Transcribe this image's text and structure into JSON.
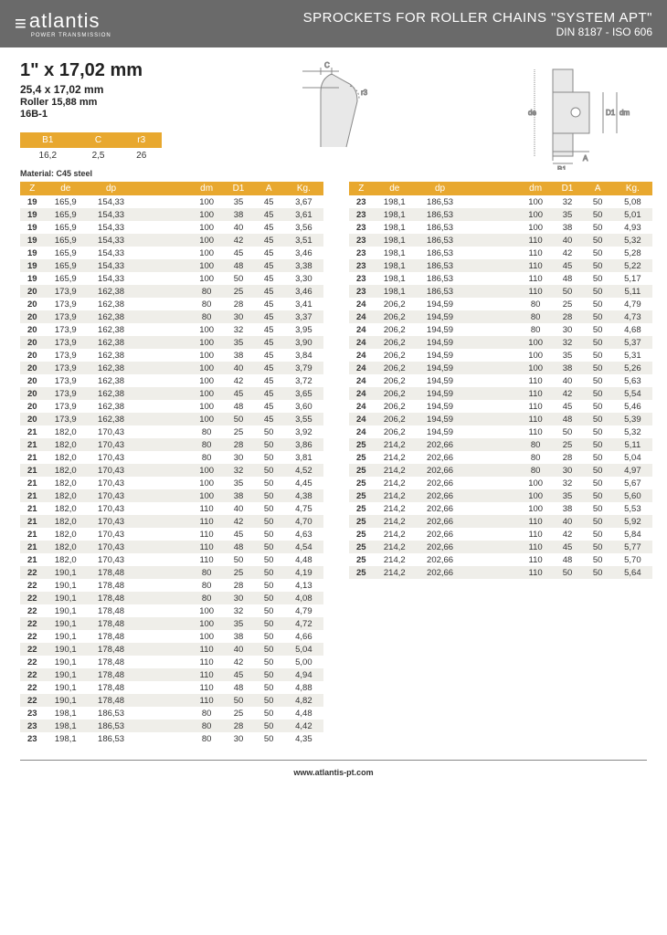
{
  "header": {
    "brand": "atlantis",
    "brand_sub": "POWER TRANSMISSION",
    "title_line1": "SPROCKETS FOR ROLLER CHAINS \"SYSTEM APT\"",
    "title_line2": "DIN 8187 - ISO 606"
  },
  "spec": {
    "line1": "1\" x 17,02 mm",
    "line2": "25,4 x 17,02 mm",
    "line3": "Roller 15,88 mm",
    "line4": "16B-1"
  },
  "mini_headers": [
    "B1",
    "C",
    "r3"
  ],
  "mini_values": [
    "16,2",
    "2,5",
    "26"
  ],
  "material": "Material: C45 steel",
  "columns": [
    "Z",
    "de",
    "dp",
    "",
    "dm",
    "D1",
    "A",
    "Kg."
  ],
  "colors": {
    "header_bg": "#6a6a6a",
    "accent": "#e8a82f",
    "row_alt": "#efeee9"
  },
  "left_rows": [
    [
      "19",
      "165,9",
      "154,33",
      "",
      "100",
      "35",
      "45",
      "3,67"
    ],
    [
      "19",
      "165,9",
      "154,33",
      "",
      "100",
      "38",
      "45",
      "3,61"
    ],
    [
      "19",
      "165,9",
      "154,33",
      "",
      "100",
      "40",
      "45",
      "3,56"
    ],
    [
      "19",
      "165,9",
      "154,33",
      "",
      "100",
      "42",
      "45",
      "3,51"
    ],
    [
      "19",
      "165,9",
      "154,33",
      "",
      "100",
      "45",
      "45",
      "3,46"
    ],
    [
      "19",
      "165,9",
      "154,33",
      "",
      "100",
      "48",
      "45",
      "3,38"
    ],
    [
      "19",
      "165,9",
      "154,33",
      "",
      "100",
      "50",
      "45",
      "3,30"
    ],
    [
      "20",
      "173,9",
      "162,38",
      "",
      "80",
      "25",
      "45",
      "3,46"
    ],
    [
      "20",
      "173,9",
      "162,38",
      "",
      "80",
      "28",
      "45",
      "3,41"
    ],
    [
      "20",
      "173,9",
      "162,38",
      "",
      "80",
      "30",
      "45",
      "3,37"
    ],
    [
      "20",
      "173,9",
      "162,38",
      "",
      "100",
      "32",
      "45",
      "3,95"
    ],
    [
      "20",
      "173,9",
      "162,38",
      "",
      "100",
      "35",
      "45",
      "3,90"
    ],
    [
      "20",
      "173,9",
      "162,38",
      "",
      "100",
      "38",
      "45",
      "3,84"
    ],
    [
      "20",
      "173,9",
      "162,38",
      "",
      "100",
      "40",
      "45",
      "3,79"
    ],
    [
      "20",
      "173,9",
      "162,38",
      "",
      "100",
      "42",
      "45",
      "3,72"
    ],
    [
      "20",
      "173,9",
      "162,38",
      "",
      "100",
      "45",
      "45",
      "3,65"
    ],
    [
      "20",
      "173,9",
      "162,38",
      "",
      "100",
      "48",
      "45",
      "3,60"
    ],
    [
      "20",
      "173,9",
      "162,38",
      "",
      "100",
      "50",
      "45",
      "3,55"
    ],
    [
      "21",
      "182,0",
      "170,43",
      "",
      "80",
      "25",
      "50",
      "3,92"
    ],
    [
      "21",
      "182,0",
      "170,43",
      "",
      "80",
      "28",
      "50",
      "3,86"
    ],
    [
      "21",
      "182,0",
      "170,43",
      "",
      "80",
      "30",
      "50",
      "3,81"
    ],
    [
      "21",
      "182,0",
      "170,43",
      "",
      "100",
      "32",
      "50",
      "4,52"
    ],
    [
      "21",
      "182,0",
      "170,43",
      "",
      "100",
      "35",
      "50",
      "4,45"
    ],
    [
      "21",
      "182,0",
      "170,43",
      "",
      "100",
      "38",
      "50",
      "4,38"
    ],
    [
      "21",
      "182,0",
      "170,43",
      "",
      "110",
      "40",
      "50",
      "4,75"
    ],
    [
      "21",
      "182,0",
      "170,43",
      "",
      "110",
      "42",
      "50",
      "4,70"
    ],
    [
      "21",
      "182,0",
      "170,43",
      "",
      "110",
      "45",
      "50",
      "4,63"
    ],
    [
      "21",
      "182,0",
      "170,43",
      "",
      "110",
      "48",
      "50",
      "4,54"
    ],
    [
      "21",
      "182,0",
      "170,43",
      "",
      "110",
      "50",
      "50",
      "4,48"
    ],
    [
      "22",
      "190,1",
      "178,48",
      "",
      "80",
      "25",
      "50",
      "4,19"
    ],
    [
      "22",
      "190,1",
      "178,48",
      "",
      "80",
      "28",
      "50",
      "4,13"
    ],
    [
      "22",
      "190,1",
      "178,48",
      "",
      "80",
      "30",
      "50",
      "4,08"
    ],
    [
      "22",
      "190,1",
      "178,48",
      "",
      "100",
      "32",
      "50",
      "4,79"
    ],
    [
      "22",
      "190,1",
      "178,48",
      "",
      "100",
      "35",
      "50",
      "4,72"
    ],
    [
      "22",
      "190,1",
      "178,48",
      "",
      "100",
      "38",
      "50",
      "4,66"
    ],
    [
      "22",
      "190,1",
      "178,48",
      "",
      "110",
      "40",
      "50",
      "5,04"
    ],
    [
      "22",
      "190,1",
      "178,48",
      "",
      "110",
      "42",
      "50",
      "5,00"
    ],
    [
      "22",
      "190,1",
      "178,48",
      "",
      "110",
      "45",
      "50",
      "4,94"
    ],
    [
      "22",
      "190,1",
      "178,48",
      "",
      "110",
      "48",
      "50",
      "4,88"
    ],
    [
      "22",
      "190,1",
      "178,48",
      "",
      "110",
      "50",
      "50",
      "4,82"
    ],
    [
      "23",
      "198,1",
      "186,53",
      "",
      "80",
      "25",
      "50",
      "4,48"
    ],
    [
      "23",
      "198,1",
      "186,53",
      "",
      "80",
      "28",
      "50",
      "4,42"
    ],
    [
      "23",
      "198,1",
      "186,53",
      "",
      "80",
      "30",
      "50",
      "4,35"
    ]
  ],
  "right_rows": [
    [
      "23",
      "198,1",
      "186,53",
      "",
      "100",
      "32",
      "50",
      "5,08"
    ],
    [
      "23",
      "198,1",
      "186,53",
      "",
      "100",
      "35",
      "50",
      "5,01"
    ],
    [
      "23",
      "198,1",
      "186,53",
      "",
      "100",
      "38",
      "50",
      "4,93"
    ],
    [
      "23",
      "198,1",
      "186,53",
      "",
      "110",
      "40",
      "50",
      "5,32"
    ],
    [
      "23",
      "198,1",
      "186,53",
      "",
      "110",
      "42",
      "50",
      "5,28"
    ],
    [
      "23",
      "198,1",
      "186,53",
      "",
      "110",
      "45",
      "50",
      "5,22"
    ],
    [
      "23",
      "198,1",
      "186,53",
      "",
      "110",
      "48",
      "50",
      "5,17"
    ],
    [
      "23",
      "198,1",
      "186,53",
      "",
      "110",
      "50",
      "50",
      "5,11"
    ],
    [
      "24",
      "206,2",
      "194,59",
      "",
      "80",
      "25",
      "50",
      "4,79"
    ],
    [
      "24",
      "206,2",
      "194,59",
      "",
      "80",
      "28",
      "50",
      "4,73"
    ],
    [
      "24",
      "206,2",
      "194,59",
      "",
      "80",
      "30",
      "50",
      "4,68"
    ],
    [
      "24",
      "206,2",
      "194,59",
      "",
      "100",
      "32",
      "50",
      "5,37"
    ],
    [
      "24",
      "206,2",
      "194,59",
      "",
      "100",
      "35",
      "50",
      "5,31"
    ],
    [
      "24",
      "206,2",
      "194,59",
      "",
      "100",
      "38",
      "50",
      "5,26"
    ],
    [
      "24",
      "206,2",
      "194,59",
      "",
      "110",
      "40",
      "50",
      "5,63"
    ],
    [
      "24",
      "206,2",
      "194,59",
      "",
      "110",
      "42",
      "50",
      "5,54"
    ],
    [
      "24",
      "206,2",
      "194,59",
      "",
      "110",
      "45",
      "50",
      "5,46"
    ],
    [
      "24",
      "206,2",
      "194,59",
      "",
      "110",
      "48",
      "50",
      "5,39"
    ],
    [
      "24",
      "206,2",
      "194,59",
      "",
      "110",
      "50",
      "50",
      "5,32"
    ],
    [
      "25",
      "214,2",
      "202,66",
      "",
      "80",
      "25",
      "50",
      "5,11"
    ],
    [
      "25",
      "214,2",
      "202,66",
      "",
      "80",
      "28",
      "50",
      "5,04"
    ],
    [
      "25",
      "214,2",
      "202,66",
      "",
      "80",
      "30",
      "50",
      "4,97"
    ],
    [
      "25",
      "214,2",
      "202,66",
      "",
      "100",
      "32",
      "50",
      "5,67"
    ],
    [
      "25",
      "214,2",
      "202,66",
      "",
      "100",
      "35",
      "50",
      "5,60"
    ],
    [
      "25",
      "214,2",
      "202,66",
      "",
      "100",
      "38",
      "50",
      "5,53"
    ],
    [
      "25",
      "214,2",
      "202,66",
      "",
      "110",
      "40",
      "50",
      "5,92"
    ],
    [
      "25",
      "214,2",
      "202,66",
      "",
      "110",
      "42",
      "50",
      "5,84"
    ],
    [
      "25",
      "214,2",
      "202,66",
      "",
      "110",
      "45",
      "50",
      "5,77"
    ],
    [
      "25",
      "214,2",
      "202,66",
      "",
      "110",
      "48",
      "50",
      "5,70"
    ],
    [
      "25",
      "214,2",
      "202,66",
      "",
      "110",
      "50",
      "50",
      "5,64"
    ]
  ],
  "footer": "www.atlantis-pt.com"
}
